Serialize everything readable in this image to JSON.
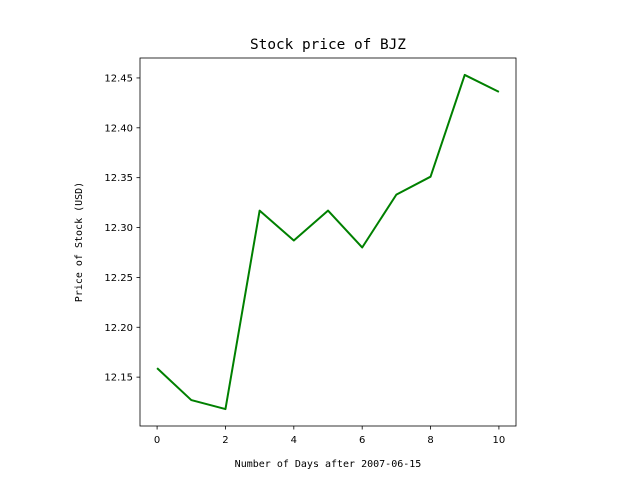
{
  "chart_data": {
    "type": "line",
    "title": "Stock price of BJZ",
    "xlabel": "Number of Days after 2007-06-15",
    "ylabel": "Price of Stock (USD)",
    "xlim": [
      -0.5,
      10.5
    ],
    "ylim": [
      12.101,
      12.47
    ],
    "xticks": [
      0,
      2,
      4,
      6,
      8,
      10
    ],
    "xtick_labels": [
      "0",
      "2",
      "4",
      "6",
      "8",
      "10"
    ],
    "yticks": [
      12.15,
      12.2,
      12.25,
      12.3,
      12.35,
      12.4,
      12.45
    ],
    "ytick_labels": [
      "12.15",
      "12.20",
      "12.25",
      "12.30",
      "12.35",
      "12.40",
      "12.45"
    ],
    "grid": false,
    "series": [
      {
        "color": "#008000",
        "x": [
          0,
          1,
          2,
          3,
          4,
          5,
          6,
          7,
          8,
          9,
          10
        ],
        "y": [
          12.159,
          12.127,
          12.118,
          12.317,
          12.287,
          12.317,
          12.28,
          12.333,
          12.351,
          12.453,
          12.436
        ]
      }
    ]
  }
}
